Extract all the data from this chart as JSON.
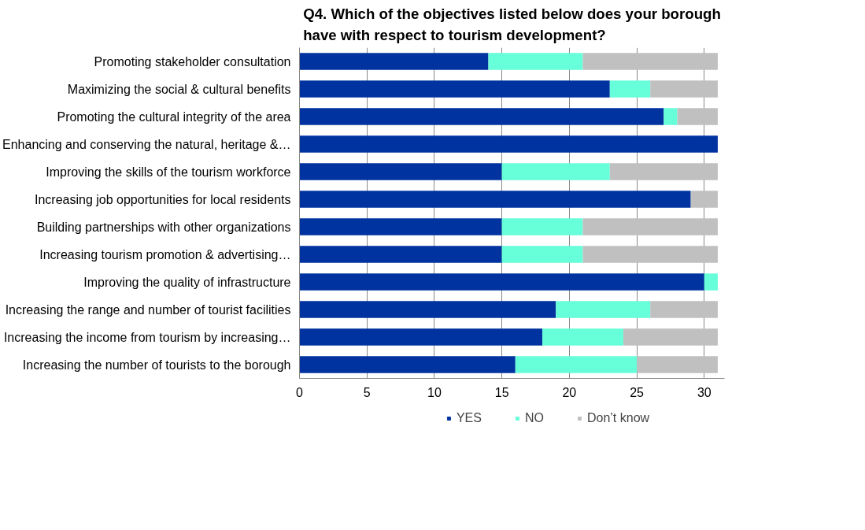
{
  "chart_data": {
    "type": "bar",
    "orientation": "horizontal",
    "stacked": true,
    "title": "Q4. Which of the objectives listed below does your borough have with respect to tourism development?",
    "categories": [
      "Promoting stakeholder consultation",
      "Maximizing the social & cultural benefits",
      "Promoting the cultural integrity of the area",
      "Enhancing and conserving the natural, heritage &…",
      "Improving the skills of the tourism workforce",
      "Increasing job opportunities for local residents",
      "Building partnerships with other organizations",
      "Increasing tourism promotion & advertising…",
      "Improving the quality of infrastructure",
      "Increasing the range and number of tourist facilities",
      "Increasing the income from tourism by increasing…",
      "Increasing the number of tourists to the borough"
    ],
    "series": [
      {
        "name": "YES",
        "color": "#0033a0",
        "values": [
          14,
          23,
          27,
          31,
          15,
          29,
          15,
          15,
          30,
          19,
          18,
          16
        ]
      },
      {
        "name": "NO",
        "color": "#66ffd9",
        "values": [
          7,
          3,
          1,
          0,
          8,
          0,
          6,
          6,
          1,
          7,
          6,
          9
        ]
      },
      {
        "name": "Don’t know",
        "color": "#c0c0c0",
        "values": [
          10,
          5,
          3,
          0,
          8,
          2,
          10,
          10,
          0,
          5,
          7,
          6
        ]
      }
    ],
    "xlim": [
      0,
      31.5
    ],
    "xticks": [
      0,
      5,
      10,
      15,
      20,
      25,
      30
    ],
    "grid": "x",
    "legend": "bottom"
  }
}
